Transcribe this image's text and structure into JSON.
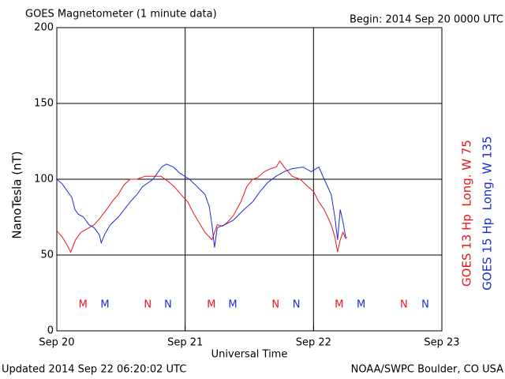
{
  "chart_data": {
    "type": "line",
    "title": "GOES Magnetometer (1 minute data)",
    "subtitle": "Begin:  2014 Sep 20 0000 UTC",
    "ylabel": "NanoTesla (nT)",
    "xlabel": "Universal Time",
    "footer_left": "Updated 2014 Sep 22 06:20:02 UTC",
    "footer_right": "NOAA/SWPC Boulder, CO USA",
    "xlim": [
      0,
      72
    ],
    "xticks": [
      {
        "value": 0,
        "label": "Sep 20"
      },
      {
        "value": 24,
        "label": "Sep 21"
      },
      {
        "value": 48,
        "label": "Sep 22"
      },
      {
        "value": 72,
        "label": "Sep 23"
      }
    ],
    "ylim": [
      0,
      200
    ],
    "yticks": [
      0,
      50,
      100,
      150,
      200
    ],
    "grid": true,
    "series": [
      {
        "name": "GOES 13 Hp  Long. W 75",
        "color": "#e8141c",
        "x": [
          0,
          1,
          2,
          2.6,
          3.5,
          4.5,
          5.5,
          7,
          8,
          9.3,
          10.5,
          11.5,
          12.5,
          13.7,
          15,
          16.5,
          18,
          19.5,
          21,
          22,
          23.2,
          24.5,
          25.5,
          26.5,
          27.7,
          28.5,
          29,
          30,
          31,
          32,
          33,
          34.4,
          35.5,
          36.6,
          37.5,
          38.8,
          40,
          41,
          41.7,
          42.5,
          44,
          45.5,
          47,
          48,
          49,
          50,
          51.3,
          52,
          52.5,
          53,
          53.5,
          54,
          54.3
        ],
        "values": [
          66,
          62,
          56,
          52,
          60,
          65,
          67,
          70,
          74,
          80,
          86,
          90,
          96,
          100,
          100,
          102,
          102,
          102,
          98,
          95,
          90,
          85,
          78,
          72,
          65,
          62,
          60,
          70,
          69,
          72,
          76,
          85,
          95,
          100,
          101,
          105,
          107,
          108,
          112,
          108,
          102,
          100,
          95,
          92,
          85,
          80,
          70,
          62,
          52,
          60,
          65,
          61,
          62
        ],
        "markers": [
          {
            "label": "M",
            "x": 4.9
          },
          {
            "label": "N",
            "x": 17.0
          },
          {
            "label": "M",
            "x": 28.9
          },
          {
            "label": "N",
            "x": 40.9
          },
          {
            "label": "M",
            "x": 52.8
          },
          {
            "label": "N",
            "x": 64.9
          }
        ]
      },
      {
        "name": "GOES 15 Hp  Long. W 135",
        "color": "#1b2bd6",
        "x": [
          0,
          1,
          2,
          2.8,
          3.4,
          4,
          5,
          6,
          7,
          8,
          8.3,
          9,
          10,
          11.5,
          13.7,
          15,
          16,
          18,
          19.6,
          20.5,
          21.8,
          23,
          24.8,
          26,
          27.7,
          28.5,
          29,
          29.5,
          30,
          31.4,
          33,
          35,
          36.6,
          38,
          39.5,
          41,
          42.5,
          44,
          46,
          47.6,
          48.5,
          49,
          50,
          51.3,
          52,
          52.5,
          53,
          53.5,
          54
        ],
        "values": [
          100,
          97,
          92,
          88,
          80,
          77,
          75,
          70,
          68,
          63,
          58,
          64,
          70,
          75,
          85,
          90,
          95,
          100,
          108,
          110,
          108,
          104,
          100,
          96,
          90,
          82,
          70,
          55,
          68,
          70,
          73,
          80,
          85,
          92,
          98,
          102,
          105,
          107,
          108,
          105,
          107,
          108,
          100,
          90,
          75,
          60,
          80,
          72,
          62
        ],
        "markers": [
          {
            "label": "M",
            "x": 9.0
          },
          {
            "label": "N",
            "x": 20.8
          },
          {
            "label": "M",
            "x": 32.9
          },
          {
            "label": "N",
            "x": 44.8
          },
          {
            "label": "M",
            "x": 56.9
          },
          {
            "label": "N",
            "x": 68.9
          }
        ]
      }
    ]
  }
}
